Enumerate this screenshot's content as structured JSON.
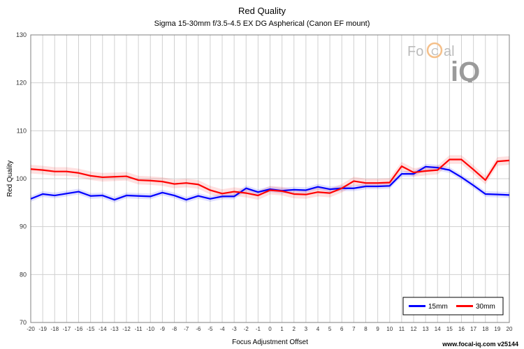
{
  "chart_data": {
    "type": "line",
    "title": "Red Quality",
    "subtitle": "Sigma 15-30mm f/3.5-4.5 EX DG Aspherical (Canon EF mount)",
    "xlabel": "Focus Adjustment Offset",
    "ylabel": "Red Quality",
    "xlim": [
      -20,
      20
    ],
    "ylim": [
      70,
      130
    ],
    "yticks": [
      70,
      80,
      90,
      100,
      110,
      120,
      130
    ],
    "x": [
      -20,
      -19,
      -18,
      -17,
      -16,
      -15,
      -14,
      -13,
      -12,
      -11,
      -10,
      -9,
      -8,
      -7,
      -6,
      -5,
      -4,
      -3,
      -2,
      -1,
      0,
      1,
      2,
      3,
      4,
      5,
      6,
      7,
      8,
      9,
      10,
      11,
      12,
      13,
      14,
      15,
      16,
      17,
      18,
      19,
      20
    ],
    "grid": true,
    "legend_position": "bottom-right",
    "series": [
      {
        "name": "15mm",
        "color": "#0000ff",
        "values": [
          95.8,
          96.8,
          96.5,
          96.9,
          97.3,
          96.4,
          96.5,
          95.6,
          96.5,
          96.4,
          96.3,
          97.1,
          96.5,
          95.6,
          96.4,
          95.8,
          96.3,
          96.3,
          98.0,
          97.2,
          97.8,
          97.5,
          97.7,
          97.6,
          98.3,
          97.8,
          98.0,
          98.0,
          98.4,
          98.4,
          98.5,
          101.0,
          101.0,
          102.5,
          102.3,
          101.8,
          100.3,
          98.6,
          96.8,
          96.7,
          96.6
        ],
        "band": 0.6
      },
      {
        "name": "30mm",
        "color": "#ff0000",
        "values": [
          102.0,
          101.8,
          101.5,
          101.5,
          101.2,
          100.6,
          100.3,
          100.4,
          100.5,
          99.7,
          99.6,
          99.4,
          98.9,
          99.1,
          98.8,
          97.6,
          96.9,
          97.3,
          97.0,
          96.5,
          97.6,
          97.4,
          96.8,
          96.7,
          97.2,
          97.0,
          98.0,
          99.5,
          99.1,
          99.1,
          99.2,
          102.6,
          101.3,
          101.6,
          101.8,
          104.0,
          104.0,
          101.9,
          99.7,
          103.6,
          103.8
        ],
        "band": 0.9
      }
    ]
  },
  "watermark": {
    "text_fo": "Fo",
    "text_c": "C",
    "text_al": "al",
    "text_iq": "iQ"
  },
  "footer": "www.focal-iq.com v25144"
}
